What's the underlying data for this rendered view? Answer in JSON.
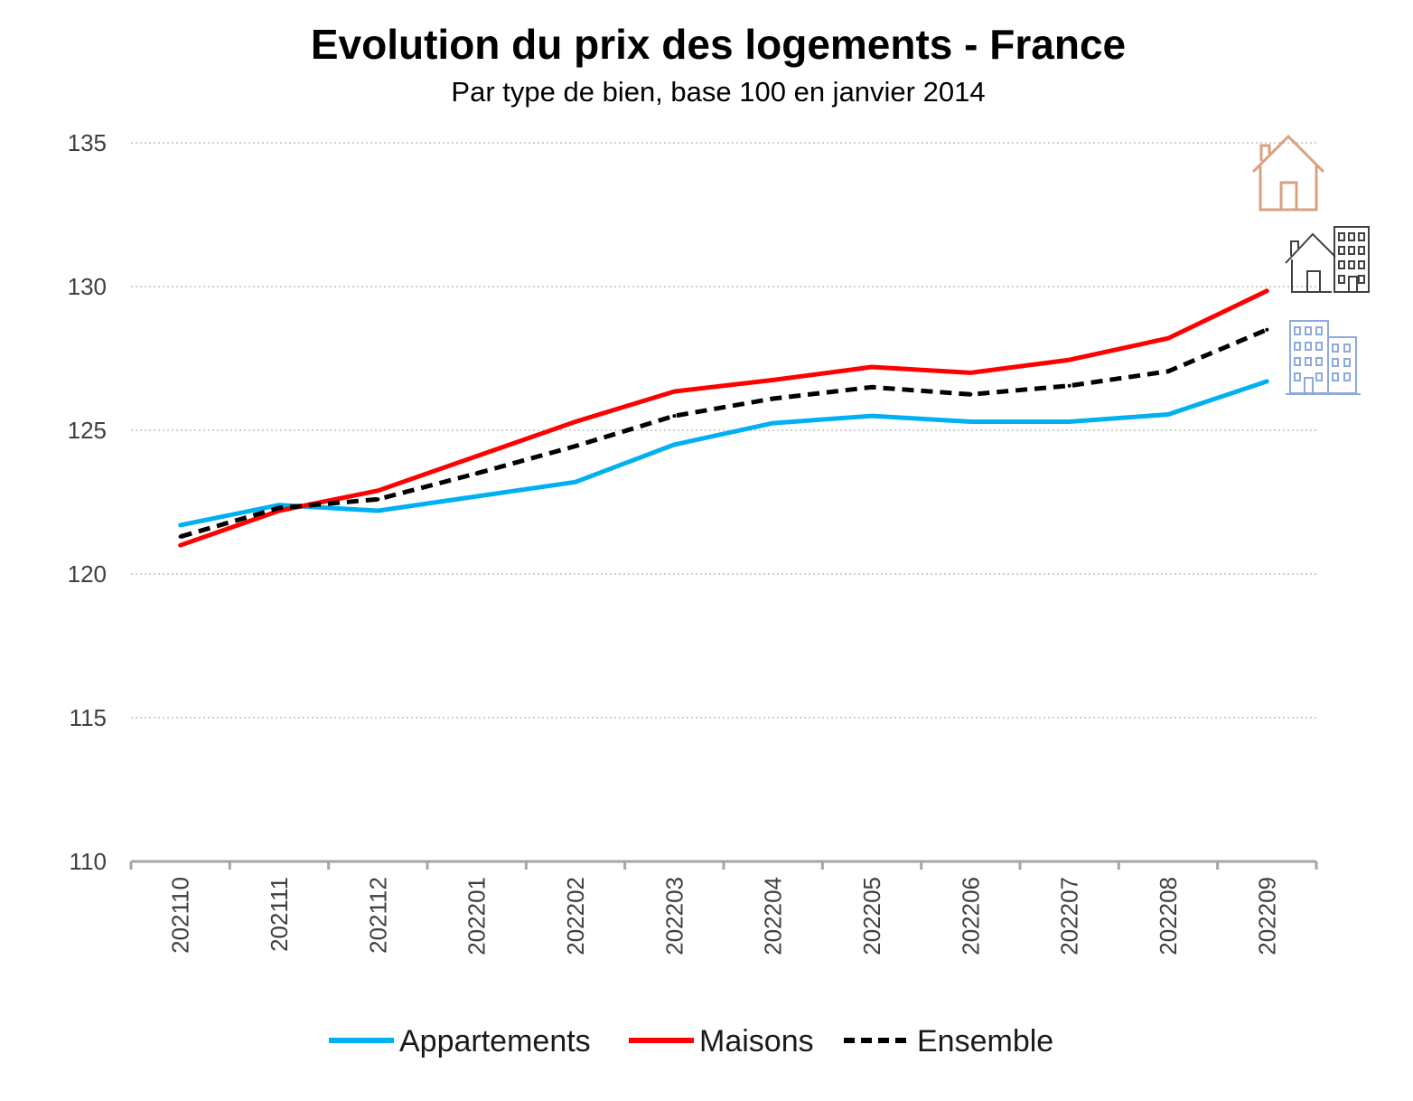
{
  "chart_data": {
    "type": "line",
    "title": "Evolution du prix des logements - France",
    "subtitle": "Par type de bien, base 100 en janvier 2014",
    "xlabel": "",
    "ylabel": "",
    "ylim": [
      110,
      135
    ],
    "yticks": [
      "110",
      "115",
      "120",
      "125",
      "130",
      "135"
    ],
    "categories": [
      "202110",
      "202111",
      "202112",
      "202201",
      "202202",
      "202203",
      "202204",
      "202205",
      "202206",
      "202207",
      "202208",
      "202209"
    ],
    "grid": "horizontal dotted",
    "legend_position": "bottom",
    "series": [
      {
        "name": "Appartements",
        "color": "#00b0f0",
        "dash": "solid",
        "values": [
          121.7,
          122.4,
          122.2,
          122.7,
          123.2,
          124.5,
          125.25,
          125.5,
          125.3,
          125.3,
          125.55,
          126.7
        ]
      },
      {
        "name": "Maisons",
        "color": "#ff0000",
        "dash": "solid",
        "values": [
          121.0,
          122.2,
          122.9,
          124.1,
          125.3,
          126.35,
          126.75,
          127.2,
          127.0,
          127.45,
          128.2,
          129.85
        ]
      },
      {
        "name": "Ensemble",
        "color": "#000000",
        "dash": "dashed",
        "values": [
          121.3,
          122.3,
          122.6,
          123.5,
          124.45,
          125.5,
          126.1,
          126.5,
          126.25,
          126.55,
          127.05,
          128.5
        ]
      }
    ],
    "icons": [
      {
        "name": "house-icon",
        "color": "#d9a080",
        "series": "Maisons"
      },
      {
        "name": "house-and-building-icon",
        "color": "#404040",
        "series": "Ensemble"
      },
      {
        "name": "apartment-building-icon",
        "color": "#8ea9db",
        "series": "Appartements"
      }
    ]
  }
}
